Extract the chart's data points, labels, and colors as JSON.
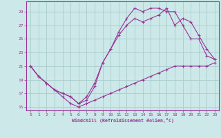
{
  "xlabel": "Windchill (Refroidissement éolien,°C)",
  "bg_color": "#cce8e8",
  "grid_color": "#aacccc",
  "line_color": "#993399",
  "xlim": [
    -0.5,
    23.5
  ],
  "ylim": [
    14.5,
    30.5
  ],
  "yticks": [
    15,
    17,
    19,
    21,
    23,
    25,
    27,
    29
  ],
  "xticks": [
    0,
    1,
    2,
    3,
    4,
    5,
    6,
    7,
    8,
    9,
    10,
    11,
    12,
    13,
    14,
    15,
    16,
    17,
    18,
    19,
    20,
    21,
    22,
    23
  ],
  "line1_x": [
    0,
    1,
    2,
    3,
    4,
    5,
    6,
    7,
    8,
    9,
    10,
    11,
    12,
    13,
    14,
    15,
    16,
    17,
    18,
    19,
    20,
    21,
    22,
    23
  ],
  "line1_y": [
    21,
    19.5,
    18.5,
    17.5,
    16.5,
    15.5,
    15,
    15.5,
    16,
    16.5,
    17,
    17.5,
    18,
    18.5,
    19,
    19.5,
    20,
    20.5,
    21,
    21,
    21,
    21,
    21,
    21.5
  ],
  "line2_x": [
    0,
    1,
    2,
    3,
    4,
    5,
    6,
    7,
    8,
    9,
    10,
    11,
    12,
    13,
    14,
    15,
    16,
    17,
    18,
    19,
    20,
    21,
    22,
    23
  ],
  "line2_y": [
    21,
    19.5,
    18.5,
    17.5,
    17,
    16.5,
    15.5,
    16,
    18,
    21.5,
    23.5,
    26,
    28,
    29.5,
    29,
    29.5,
    29.5,
    29,
    29,
    27,
    25,
    25,
    22.5,
    22
  ],
  "line3_x": [
    0,
    1,
    2,
    3,
    4,
    5,
    6,
    7,
    8,
    9,
    10,
    11,
    12,
    13,
    14,
    15,
    16,
    17,
    18,
    19,
    20,
    21,
    22,
    23
  ],
  "line3_y": [
    21,
    19.5,
    18.5,
    17.5,
    17,
    16.5,
    15.5,
    16.5,
    18.5,
    21.5,
    23.5,
    25.5,
    27,
    28,
    27.5,
    28,
    28.5,
    29.5,
    27,
    28,
    27.5,
    25.5,
    23.5,
    22
  ]
}
